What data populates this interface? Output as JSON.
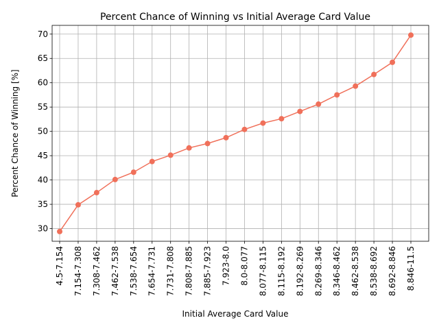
{
  "chart_data": {
    "type": "line",
    "title": "Percent Chance of Winning vs Initial Average Card Value",
    "x_label": "Initial Average Card Value",
    "y_label": "Percent Chance of Winning [%]",
    "categories": [
      "4.5-7.154",
      "7.154-7.308",
      "7.308-7.462",
      "7.462-7.538",
      "7.538-7.654",
      "7.654-7.731",
      "7.731-7.808",
      "7.808-7.885",
      "7.885-7.923",
      "7.923-8.0",
      "8.0-8.077",
      "8.077-8.115",
      "8.115-8.192",
      "8.192-8.269",
      "8.269-8.346",
      "8.346-8.462",
      "8.462-8.538",
      "8.538-8.692",
      "8.692-8.846",
      "8.846-11.5"
    ],
    "values": [
      29.4,
      34.9,
      37.4,
      40.1,
      41.6,
      43.8,
      45.1,
      46.6,
      47.5,
      48.7,
      50.4,
      51.7,
      52.6,
      54.1,
      55.6,
      57.5,
      59.3,
      61.7,
      64.2,
      69.8
    ],
    "color": "#f0705a",
    "ylim": [
      27.4,
      71.8
    ],
    "yticks": [
      30,
      35,
      40,
      45,
      50,
      55,
      60,
      65,
      70
    ],
    "grid": true
  }
}
